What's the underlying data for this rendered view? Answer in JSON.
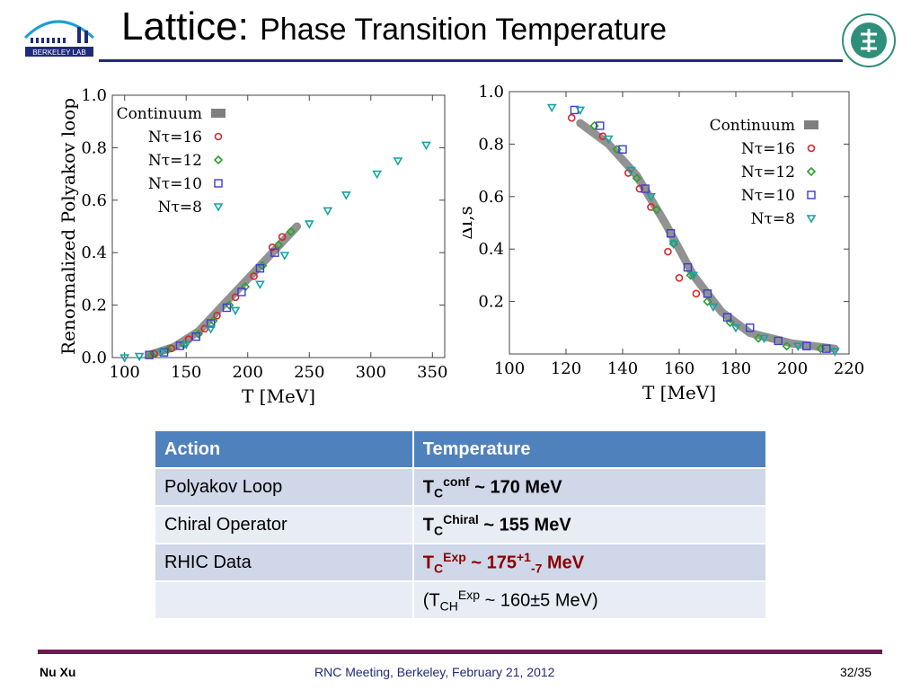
{
  "header": {
    "title_main": "Lattice:",
    "title_rest": "Phase Transition Temperature",
    "logo_left_text": "BERKELEY LAB"
  },
  "chart_data": [
    {
      "type": "scatter",
      "xlabel": "T [MeV]",
      "ylabel": "Renormalized Polyakov loop",
      "xlim": [
        90,
        360
      ],
      "ylim": [
        0,
        1.0
      ],
      "x_ticks": [
        100,
        150,
        200,
        250,
        300,
        350
      ],
      "y_ticks": [
        "0.0",
        "0.2",
        "0.4",
        "0.6",
        "0.8",
        "1.0"
      ],
      "legend_position": "top-left",
      "legend": [
        "Continuum",
        "Nτ=16",
        "Nτ=12",
        "Nτ=10",
        "Nτ=8"
      ],
      "series": [
        {
          "name": "Continuum",
          "color": "#7f7f7f",
          "x": [
            120,
            140,
            160,
            180,
            200,
            220,
            240
          ],
          "y": [
            0.01,
            0.04,
            0.1,
            0.2,
            0.3,
            0.4,
            0.5
          ]
        },
        {
          "name": "Nτ=16",
          "color": "#d62728",
          "x": [
            124,
            138,
            152,
            165,
            175,
            190,
            205,
            220,
            228
          ],
          "y": [
            0.015,
            0.035,
            0.07,
            0.11,
            0.16,
            0.23,
            0.31,
            0.42,
            0.46
          ]
        },
        {
          "name": "Nτ=12",
          "color": "#2ca02c",
          "x": [
            122,
            135,
            148,
            160,
            172,
            185,
            198,
            212,
            225,
            235
          ],
          "y": [
            0.01,
            0.03,
            0.05,
            0.09,
            0.14,
            0.2,
            0.27,
            0.35,
            0.43,
            0.48
          ]
        },
        {
          "name": "Nτ=10",
          "color": "#3b3bd6",
          "x": [
            120,
            132,
            145,
            158,
            170,
            183,
            195,
            210,
            222
          ],
          "y": [
            0.01,
            0.02,
            0.045,
            0.08,
            0.13,
            0.19,
            0.25,
            0.34,
            0.4
          ]
        },
        {
          "name": "Nτ=8",
          "color": "#17a2a2",
          "x": [
            100,
            112,
            130,
            150,
            170,
            190,
            210,
            230,
            250,
            265,
            280,
            305,
            322,
            345
          ],
          "y": [
            0.0,
            0.005,
            0.02,
            0.05,
            0.11,
            0.18,
            0.28,
            0.39,
            0.51,
            0.56,
            0.62,
            0.7,
            0.75,
            0.81
          ]
        }
      ]
    },
    {
      "type": "scatter",
      "xlabel": "T [MeV]",
      "ylabel": "Δl,s",
      "xlim": [
        100,
        220
      ],
      "ylim": [
        0,
        1.0
      ],
      "x_ticks": [
        100,
        120,
        140,
        160,
        180,
        200,
        220
      ],
      "y_ticks": [
        "0.2",
        "0.4",
        "0.6",
        "0.8",
        "1.0"
      ],
      "legend_position": "top-right",
      "legend": [
        "Continuum",
        "Nτ=16",
        "Nτ=12",
        "Nτ=10",
        "Nτ=8"
      ],
      "series": [
        {
          "name": "Continuum",
          "color": "#7f7f7f",
          "x": [
            125,
            135,
            145,
            155,
            165,
            175,
            185,
            200,
            215
          ],
          "y": [
            0.88,
            0.8,
            0.68,
            0.5,
            0.3,
            0.16,
            0.08,
            0.04,
            0.02
          ]
        },
        {
          "name": "Nτ=16",
          "color": "#d62728",
          "x": [
            122,
            133,
            142,
            146,
            150,
            156,
            160,
            166
          ],
          "y": [
            0.9,
            0.83,
            0.69,
            0.63,
            0.56,
            0.39,
            0.29,
            0.23
          ]
        },
        {
          "name": "Nτ=12",
          "color": "#2ca02c",
          "x": [
            130,
            138,
            145,
            152,
            158,
            164,
            170,
            178,
            188,
            198,
            210
          ],
          "y": [
            0.87,
            0.78,
            0.67,
            0.55,
            0.42,
            0.3,
            0.2,
            0.12,
            0.06,
            0.03,
            0.02
          ]
        },
        {
          "name": "Nτ=10",
          "color": "#3b3bd6",
          "x": [
            123,
            132,
            140,
            148,
            157,
            163,
            170,
            177,
            185,
            195,
            205,
            212
          ],
          "y": [
            0.93,
            0.87,
            0.78,
            0.63,
            0.46,
            0.33,
            0.23,
            0.14,
            0.1,
            0.05,
            0.03,
            0.02
          ]
        },
        {
          "name": "Nτ=8",
          "color": "#17a2a2",
          "x": [
            115,
            125,
            135,
            143,
            150,
            158,
            165,
            172,
            180,
            190,
            202,
            215
          ],
          "y": [
            0.94,
            0.93,
            0.82,
            0.7,
            0.6,
            0.42,
            0.3,
            0.18,
            0.1,
            0.06,
            0.03,
            0.01
          ]
        }
      ]
    }
  ],
  "table": {
    "headers": [
      "Action",
      "Temperature"
    ],
    "rows": [
      {
        "action": "Polyakov Loop",
        "t_base": "T",
        "t_sub": "C",
        "t_sup": "conf",
        "t_rest": " ~ 170 MeV"
      },
      {
        "action": "Chiral Operator",
        "t_base": "T",
        "t_sub": "C",
        "t_sup": "Chiral",
        "t_rest": " ~ 155 MeV"
      },
      {
        "action": "RHIC Data",
        "t_base": "T",
        "t_sub": "C",
        "t_sup": "Exp",
        "t_mid": " ~ 175",
        "t_sup2": "+1",
        "t_sub2": "-7",
        "t_rest": " MeV"
      },
      {
        "action": "",
        "t_open": "(T",
        "t_sub": "CH",
        "t_sup": "Exp",
        "t_rest": " ~ 160±5 MeV)"
      }
    ]
  },
  "footer": {
    "author": "Nu Xu",
    "meeting": "RNC Meeting, Berkeley, February 21, 2012",
    "page": "32/35"
  }
}
